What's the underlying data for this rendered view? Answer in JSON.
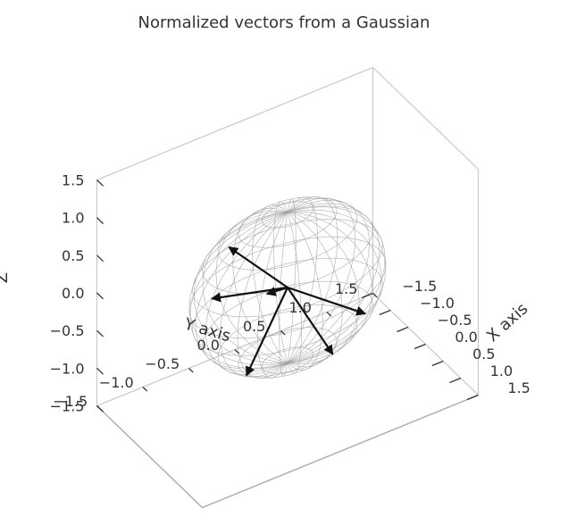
{
  "chart_data": {
    "type": "3d-quiver",
    "title": "Normalized vectors from a Gaussian",
    "xlabel": "X axis",
    "ylabel": "Y axis",
    "zlabel": "Z",
    "xlim": [
      -1.5,
      1.5
    ],
    "ylim": [
      -1.5,
      1.5
    ],
    "zlim": [
      -1.5,
      1.5
    ],
    "x_ticks": [
      "−1.5",
      "−1.0",
      "−0.5",
      "0.0",
      "0.5",
      "1.0",
      "1.5"
    ],
    "y_ticks": [
      "−1.5",
      "−1.0",
      "−0.5",
      "0.0",
      "0.5",
      "1.0",
      "1.5"
    ],
    "z_ticks": [
      "−1.5",
      "−1.0",
      "−0.5",
      "0.0",
      "0.5",
      "1.0",
      "1.5"
    ],
    "sphere": {
      "radius": 1.0,
      "style": "wireframe",
      "color": "#a0a0a0"
    },
    "origin": [
      0,
      0,
      0
    ],
    "vectors": [
      {
        "x": -0.1,
        "y": -0.6,
        "z": 0.79
      },
      {
        "x": 0.2,
        "y": -0.9,
        "z": 0.39
      },
      {
        "x": -0.85,
        "y": 0.1,
        "z": -0.52
      },
      {
        "x": 0.4,
        "y": -0.6,
        "z": -0.69
      },
      {
        "x": 0.5,
        "y": 0.3,
        "z": -0.81
      },
      {
        "x": 0.25,
        "y": 0.75,
        "z": -0.61
      }
    ],
    "vector_color": "#111111",
    "grid": false,
    "pane_color": "#ffffff",
    "edge_color": "#c8c8c8"
  }
}
